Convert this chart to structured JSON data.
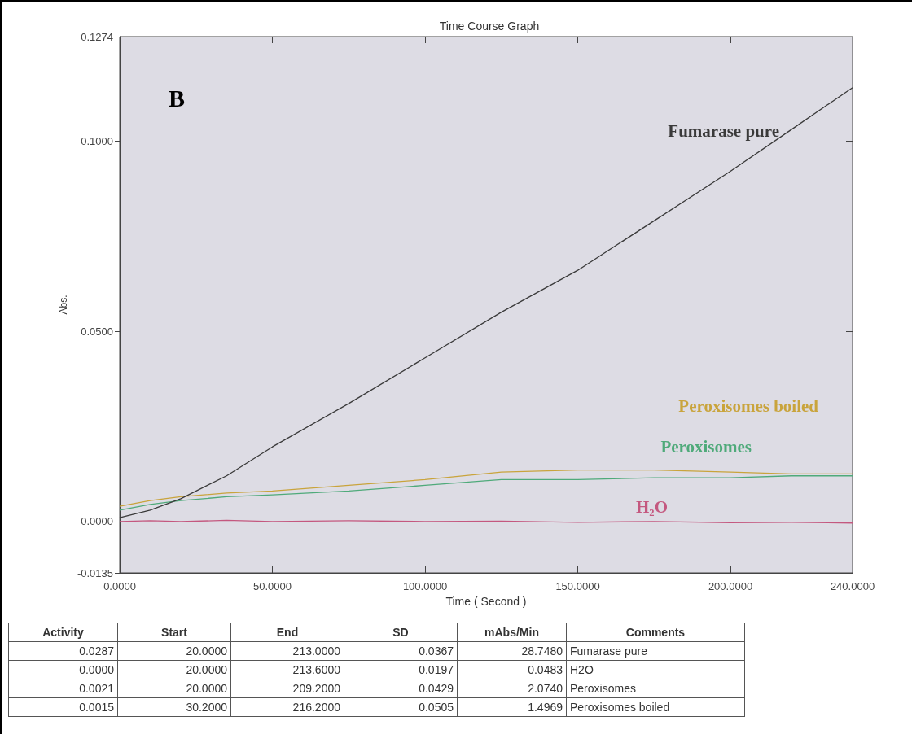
{
  "chart_data": {
    "type": "line",
    "title": "Time Course Graph",
    "xlabel": "Time ( Second )",
    "ylabel": "Abs.",
    "x": [
      0,
      10,
      20,
      35,
      50,
      75,
      100,
      125,
      150,
      175,
      200,
      220,
      240
    ],
    "xlim": [
      0,
      240
    ],
    "xticks": [
      {
        "value": 0,
        "label": "0.0000"
      },
      {
        "value": 50,
        "label": "50.0000"
      },
      {
        "value": 100,
        "label": "100.0000"
      },
      {
        "value": 150,
        "label": "150.0000"
      },
      {
        "value": 200,
        "label": "200.0000"
      },
      {
        "value": 240,
        "label": "240.0000"
      }
    ],
    "ylim": [
      -0.0135,
      0.1274
    ],
    "yticks": [
      {
        "value": -0.0135,
        "label": "-0.0135"
      },
      {
        "value": 0,
        "label": "0.0000"
      },
      {
        "value": 0.05,
        "label": "0.0500"
      },
      {
        "value": 0.1,
        "label": "0.1000"
      },
      {
        "value": 0.1274,
        "label": "0.1274"
      }
    ],
    "legend": false,
    "marker": "none",
    "line_style": "solid",
    "series": [
      {
        "name": "Fumarase pure",
        "color": "#3a3a3a",
        "values": [
          0.001,
          0.003,
          0.006,
          0.012,
          0.0196,
          0.031,
          0.043,
          0.055,
          0.066,
          0.079,
          0.092,
          0.103,
          0.114
        ]
      },
      {
        "name": "Peroxisomes boiled",
        "color": "#c9a43c",
        "values": [
          0.004,
          0.0055,
          0.0065,
          0.0075,
          0.008,
          0.0095,
          0.011,
          0.013,
          0.0135,
          0.0135,
          0.013,
          0.0125,
          0.0125
        ]
      },
      {
        "name": "Peroxisomes",
        "color": "#4faa7a",
        "values": [
          0.003,
          0.0045,
          0.0055,
          0.0065,
          0.007,
          0.008,
          0.0095,
          0.011,
          0.011,
          0.0115,
          0.0115,
          0.012,
          0.012
        ]
      },
      {
        "name": "H₂O",
        "color": "#c4587f",
        "values": [
          0,
          0.0002,
          0,
          0.0003,
          0,
          0.0002,
          0,
          0.0001,
          -0.0002,
          0,
          -0.0003,
          -0.0002,
          -0.0004
        ]
      }
    ],
    "annotations": [
      "B",
      "Activity",
      "Start",
      "End",
      "SD",
      "mAbs/Min",
      "Comments",
      "0.0287",
      "20.0000",
      "213.0000",
      "0.0367",
      "28.7480",
      "Fumarase pure",
      "0.0000",
      "20.0000",
      "213.6000",
      "0.0197",
      "0.0483",
      "H2O",
      "0.0021",
      "20.0000",
      "209.2000",
      "0.0429",
      "2.0740",
      "Peroxisomes",
      "0.0015",
      "30.2000",
      "216.2000",
      "0.0505",
      "1.4969",
      "Peroxisomes boiled"
    ]
  }
}
